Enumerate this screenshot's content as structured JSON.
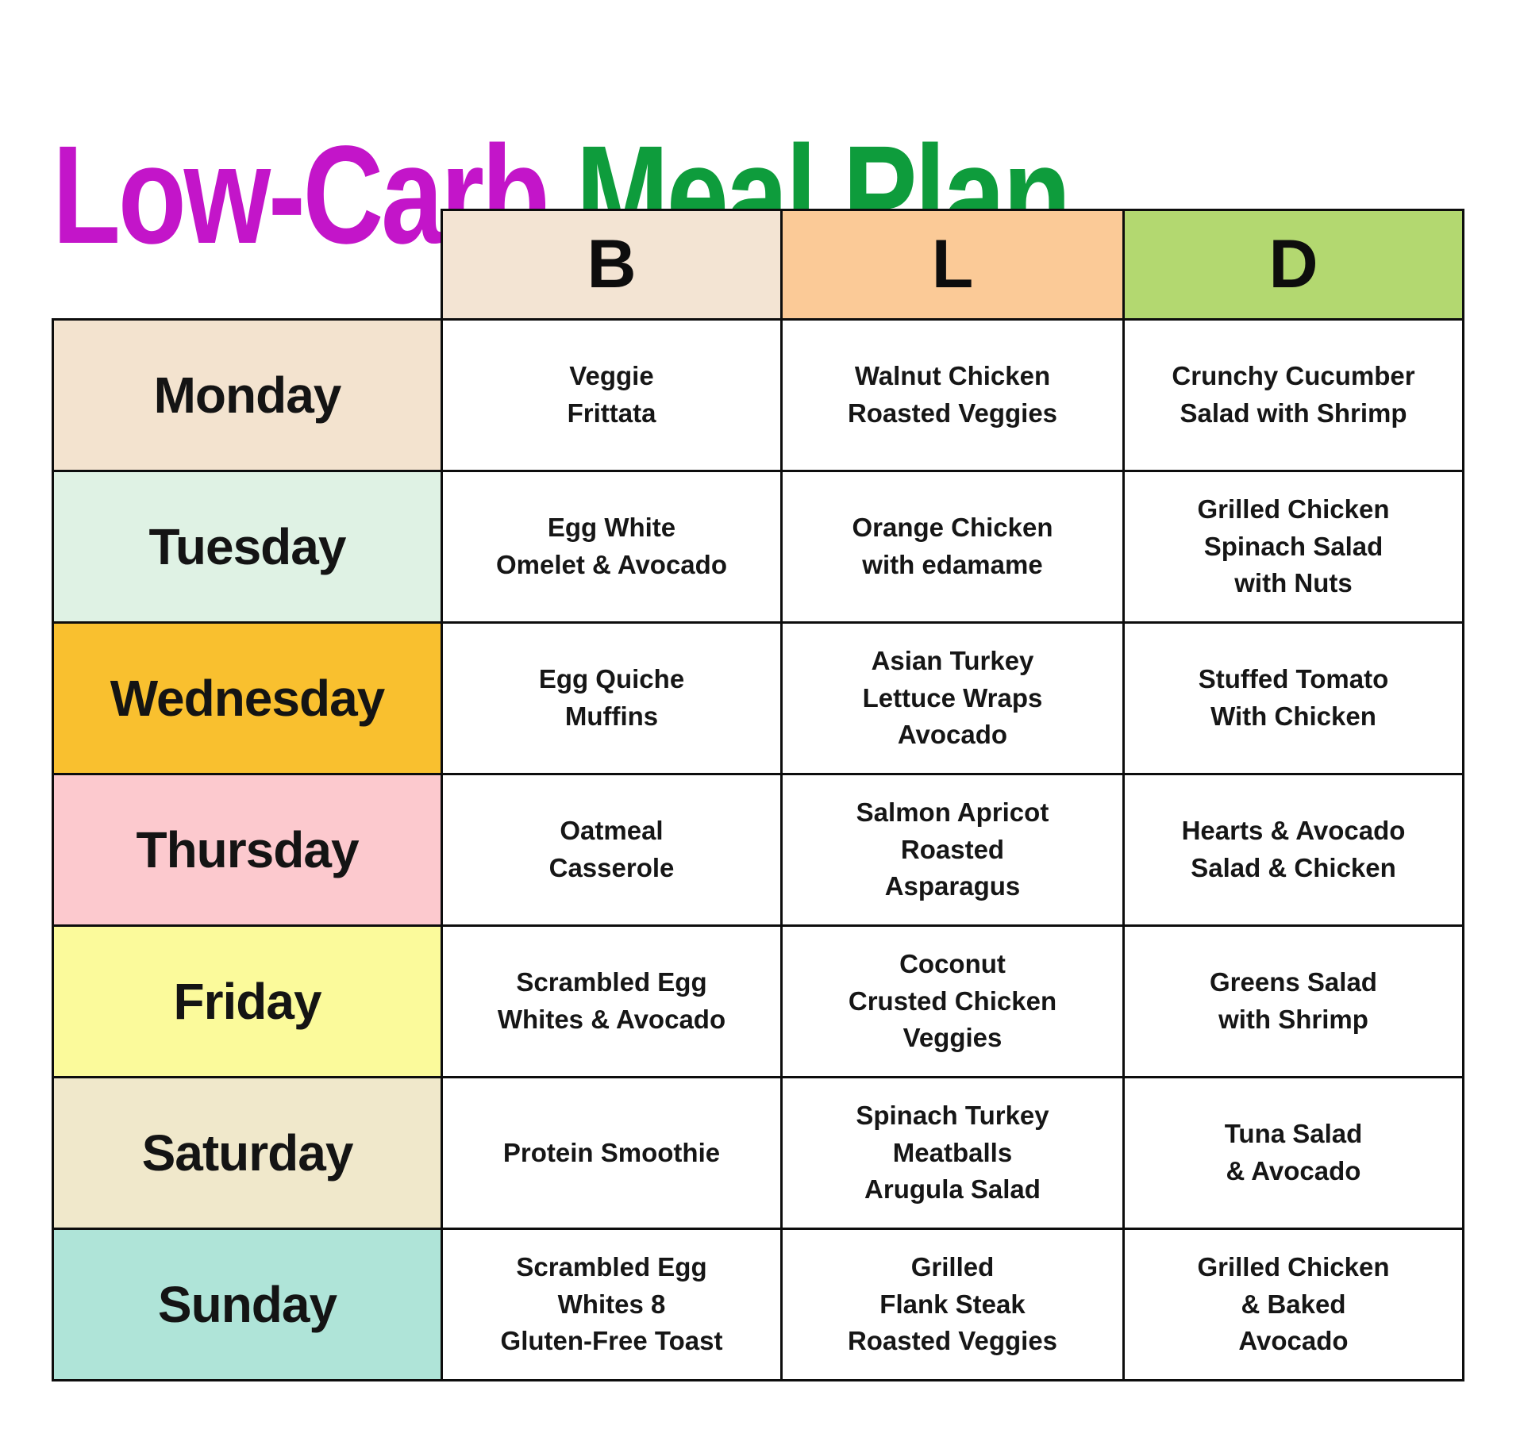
{
  "title": {
    "part1": "Low-Carb",
    "part2": "Meal Plan",
    "part1_color": "#C315C9",
    "part2_color": "#0E9C3C"
  },
  "colors": {
    "border": "#0d0d0d",
    "header_b_bg": "#F3E4D3",
    "header_l_bg": "#FBCA97",
    "header_d_bg": "#B3D870",
    "meal_cell_bg": "#ffffff"
  },
  "table": {
    "meal_headers": [
      {
        "label": "B"
      },
      {
        "label": "L"
      },
      {
        "label": "D"
      }
    ],
    "rows": [
      {
        "day": "Monday",
        "color": "#F3E3CF",
        "b": "Veggie\nFrittata",
        "l": "Walnut Chicken\nRoasted Veggies",
        "d": "Crunchy Cucumber\nSalad with Shrimp"
      },
      {
        "day": "Tuesday",
        "color": "#DFF2E4",
        "b": "Egg White\nOmelet & Avocado",
        "l": "Orange Chicken\nwith edamame",
        "d": "Grilled Chicken\nSpinach Salad\nwith Nuts"
      },
      {
        "day": "Wednesday",
        "color": "#F9C02F",
        "b": "Egg Quiche\nMuffins",
        "l": "Asian Turkey\nLettuce Wraps\nAvocado",
        "d": "Stuffed Tomato\nWith Chicken"
      },
      {
        "day": "Thursday",
        "color": "#FCC9CE",
        "b": "Oatmeal\nCasserole",
        "l": "Salmon Apricot\nRoasted\nAsparagus",
        "d": "Hearts & Avocado\nSalad & Chicken"
      },
      {
        "day": "Friday",
        "color": "#FBFA9B",
        "b": "Scrambled Egg\nWhites & Avocado",
        "l": "Coconut\nCrusted Chicken\nVeggies",
        "d": "Greens Salad\nwith Shrimp"
      },
      {
        "day": "Saturday",
        "color": "#F0E8CB",
        "b": "Protein Smoothie",
        "l": "Spinach Turkey\nMeatballs\nArugula Salad",
        "d": "Tuna Salad\n& Avocado"
      },
      {
        "day": "Sunday",
        "color": "#AFE4D8",
        "b": "Scrambled Egg\nWhites 8\nGluten-Free Toast",
        "l": "Grilled\nFlank Steak\nRoasted Veggies",
        "d": "Grilled Chicken\n& Baked\nAvocado"
      }
    ]
  }
}
